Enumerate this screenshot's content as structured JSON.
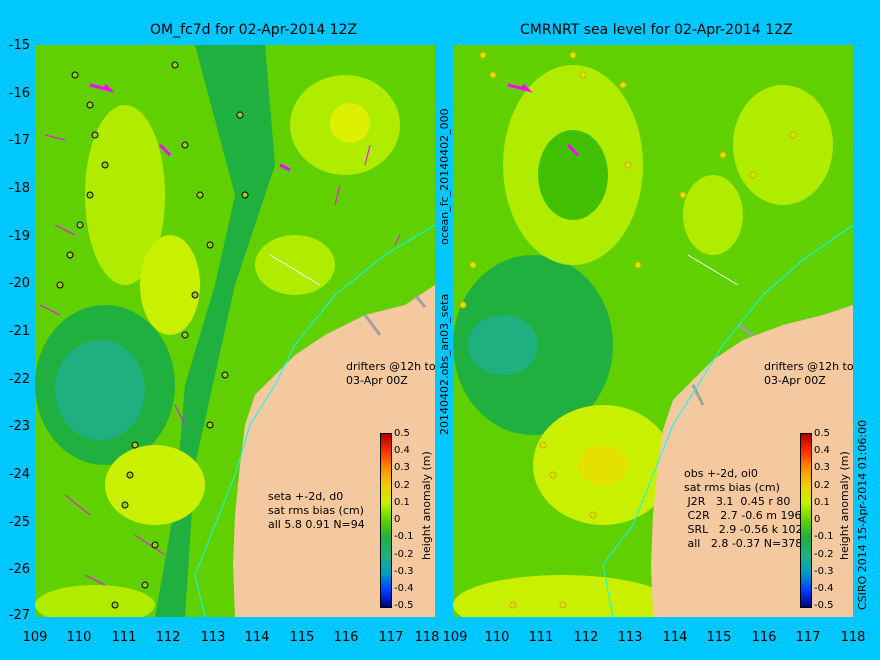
{
  "left_panel": {
    "title": "OM_fc7d for 02-Apr-2014 12Z",
    "legend_lines": "seta +-2d, d0\nsat rms bias (cm)\nall 5.8 0.91 N=94",
    "drifters_text": "drifters @12h to\n03-Apr 00Z"
  },
  "right_panel": {
    "title": "CMRNRT sea level  for 02-Apr-2014 12Z",
    "legend_lines": "obs +-2d, oi0\nsat rms bias (cm)\n J2R   3.1  0.45 r 80\n C2R   2.7 -0.6 m 196\n SRL   2.9 -0.56 k 102\n all   2.8 -0.37 N=378",
    "drifters_text": "drifters @12h to\n03-Apr 00Z"
  },
  "side_label_1": "ocean_fc_20140402_000",
  "side_label_2": "20140402.obs_an03_seta",
  "side_label_3": "CSIRO 2014   15-Apr-2014 01:06:00",
  "colorbar_label": "height anomaly (m)",
  "colorbar_ticks": [
    "0.5",
    "0.4",
    "0.3",
    "0.2",
    "0.1",
    "0",
    "-0.1",
    "-0.2",
    "-0.3",
    "-0.4",
    "-0.5"
  ],
  "y_ticks": [
    "-15",
    "-16",
    "-17",
    "-18",
    "-19",
    "-20",
    "-21",
    "-22",
    "-23",
    "-24",
    "-25",
    "-26",
    "-27"
  ],
  "x_ticks_left": [
    "109",
    "110",
    "111",
    "112",
    "113",
    "114",
    "115",
    "116",
    "117",
    "118"
  ],
  "x_ticks_right": [
    "109",
    "110",
    "111",
    "112",
    "113",
    "114",
    "115",
    "116",
    "117",
    "118"
  ],
  "colors": {
    "background": "#00c8ff",
    "land": "#f5c9a0",
    "ssh_light": "#c8f000",
    "ssh_mid": "#60d000",
    "ssh_dark": "#20b040",
    "ssh_low": "#20b080",
    "drifter": "#ff00ff",
    "coast_line": "#00ffff"
  }
}
